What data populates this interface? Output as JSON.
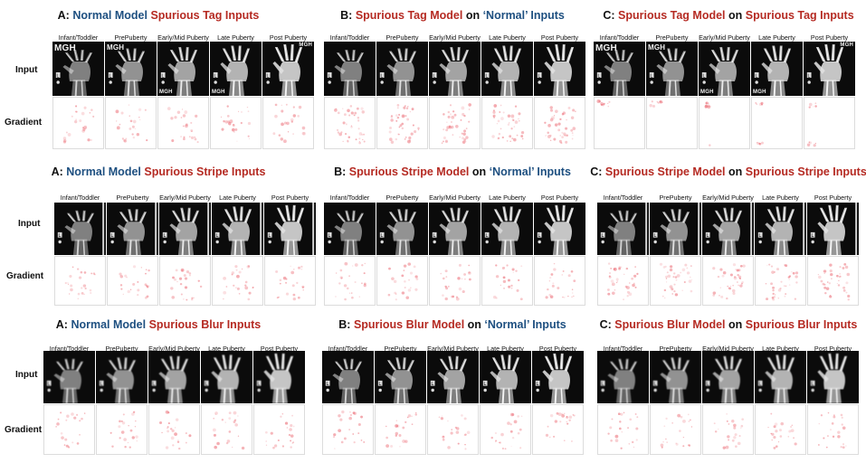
{
  "columns": [
    "Infant/Toddler",
    "PrePuberty",
    "Early/Mid Puberty",
    "Late Puberty",
    "Post Puberty"
  ],
  "rows": {
    "input": "Input",
    "gradient": "Gradient"
  },
  "tag_text": "MGH",
  "colors": {
    "blue": "#1d4f80",
    "red": "#b52a22",
    "gradient_spots": "#e8505b"
  },
  "groups": [
    {
      "panels": [
        {
          "prefix": "A: ",
          "model": "Normal Model",
          "model_color": "blue",
          "joiner": " ",
          "inputs": "Spurious Tag Inputs",
          "inputs_color": "red"
        },
        {
          "prefix": "B: ",
          "model": "Spurious Tag Model",
          "model_color": "red",
          "joiner": " on ",
          "inputs": "‘Normal’ Inputs",
          "inputs_color": "blue"
        },
        {
          "prefix": "C: ",
          "model": "Spurious Tag Model",
          "model_color": "red",
          "joiner": " on ",
          "inputs": "Spurious Tag Inputs",
          "inputs_color": "red"
        }
      ]
    },
    {
      "panels": [
        {
          "prefix": "A: ",
          "model": "Normal Model",
          "model_color": "blue",
          "joiner": " ",
          "inputs": "Spurious Stripe Inputs",
          "inputs_color": "red"
        },
        {
          "prefix": "B: ",
          "model": "Spurious Stripe Model",
          "model_color": "red",
          "joiner": " on ",
          "inputs": "‘Normal’ Inputs",
          "inputs_color": "blue"
        },
        {
          "prefix": "C: ",
          "model": "Spurious Stripe Model",
          "model_color": "red",
          "joiner": " on ",
          "inputs": "Spurious Stripe Inputs",
          "inputs_color": "red"
        }
      ]
    },
    {
      "panels": [
        {
          "prefix": "A: ",
          "model": "Normal Model",
          "model_color": "blue",
          "joiner": " ",
          "inputs": "Spurious Blur Inputs",
          "inputs_color": "red"
        },
        {
          "prefix": "B: ",
          "model": "Spurious Blur Model",
          "model_color": "red",
          "joiner": " on ",
          "inputs": "‘Normal’ Inputs",
          "inputs_color": "blue"
        },
        {
          "prefix": "C: ",
          "model": "Spurious Blur Model",
          "model_color": "red",
          "joiner": " on ",
          "inputs": "Spurious Blur Inputs",
          "inputs_color": "red"
        }
      ]
    }
  ]
}
